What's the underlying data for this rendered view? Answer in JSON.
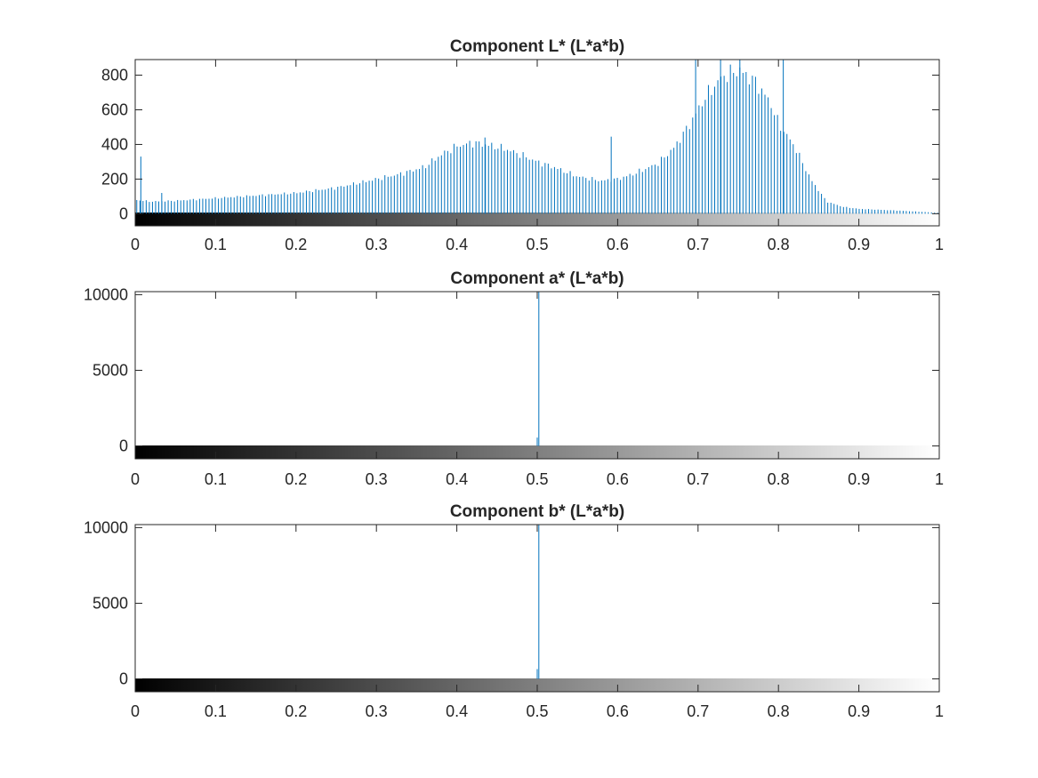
{
  "colors": {
    "stem": "#0072BD",
    "axis": "#262626",
    "background": "#ffffff",
    "gradient_start": "#000000",
    "gradient_end": "#ffffff"
  },
  "chart_data": [
    {
      "type": "bar",
      "title": "Component L* (L*a*b)",
      "xlabel": "",
      "ylabel": "",
      "xlim": [
        0,
        1
      ],
      "ylim": [
        -70,
        890
      ],
      "xticks": [
        0,
        0.1,
        0.2,
        0.3,
        0.4,
        0.5,
        0.6,
        0.7,
        0.8,
        0.9,
        1
      ],
      "xtick_labels": [
        "0",
        "0.1",
        "0.2",
        "0.3",
        "0.4",
        "0.5",
        "0.6",
        "0.7",
        "0.8",
        "0.9",
        "1"
      ],
      "yticks": [
        0,
        200,
        400,
        600,
        800
      ],
      "ytick_labels": [
        "0",
        "200",
        "400",
        "600",
        "800"
      ],
      "colorbar": "grayscale 0 to 1",
      "bins": 256,
      "envelope": [
        [
          0,
          80
        ],
        [
          0.02,
          70
        ],
        [
          0.05,
          75
        ],
        [
          0.1,
          90
        ],
        [
          0.15,
          105
        ],
        [
          0.2,
          120
        ],
        [
          0.25,
          150
        ],
        [
          0.3,
          200
        ],
        [
          0.33,
          230
        ],
        [
          0.36,
          270
        ],
        [
          0.38,
          340
        ],
        [
          0.4,
          390
        ],
        [
          0.42,
          410
        ],
        [
          0.44,
          395
        ],
        [
          0.46,
          375
        ],
        [
          0.48,
          340
        ],
        [
          0.5,
          300
        ],
        [
          0.52,
          270
        ],
        [
          0.55,
          215
        ],
        [
          0.58,
          190
        ],
        [
          0.6,
          200
        ],
        [
          0.62,
          230
        ],
        [
          0.65,
          290
        ],
        [
          0.67,
          380
        ],
        [
          0.69,
          520
        ],
        [
          0.71,
          680
        ],
        [
          0.73,
          790
        ],
        [
          0.75,
          830
        ],
        [
          0.77,
          770
        ],
        [
          0.79,
          640
        ],
        [
          0.8,
          520
        ],
        [
          0.82,
          390
        ],
        [
          0.84,
          200
        ],
        [
          0.86,
          70
        ],
        [
          0.88,
          40
        ],
        [
          0.9,
          28
        ],
        [
          0.95,
          18
        ],
        [
          1,
          5
        ]
      ],
      "spikes": [
        [
          0.007,
          330
        ],
        [
          0.033,
          120
        ],
        [
          0.435,
          440
        ],
        [
          0.592,
          445
        ],
        [
          0.697,
          890
        ],
        [
          0.728,
          890
        ],
        [
          0.752,
          890
        ],
        [
          0.806,
          890
        ]
      ]
    },
    {
      "type": "bar",
      "title": "Component a* (L*a*b)",
      "xlabel": "",
      "ylabel": "",
      "xlim": [
        0,
        1
      ],
      "ylim": [
        -850,
        10200
      ],
      "xticks": [
        0,
        0.1,
        0.2,
        0.3,
        0.4,
        0.5,
        0.6,
        0.7,
        0.8,
        0.9,
        1
      ],
      "xtick_labels": [
        "0",
        "0.1",
        "0.2",
        "0.3",
        "0.4",
        "0.5",
        "0.6",
        "0.7",
        "0.8",
        "0.9",
        "1"
      ],
      "yticks": [
        0,
        5000,
        10000
      ],
      "ytick_labels": [
        "0",
        "5000",
        "10000"
      ],
      "colorbar": "grayscale 0 to 1",
      "bins": 256,
      "envelope": [],
      "spikes": [
        [
          0.5,
          550
        ],
        [
          0.502,
          10200
        ]
      ]
    },
    {
      "type": "bar",
      "title": "Component b* (L*a*b)",
      "xlabel": "",
      "ylabel": "",
      "xlim": [
        0,
        1
      ],
      "ylim": [
        -850,
        10200
      ],
      "xticks": [
        0,
        0.1,
        0.2,
        0.3,
        0.4,
        0.5,
        0.6,
        0.7,
        0.8,
        0.9,
        1
      ],
      "xtick_labels": [
        "0",
        "0.1",
        "0.2",
        "0.3",
        "0.4",
        "0.5",
        "0.6",
        "0.7",
        "0.8",
        "0.9",
        "1"
      ],
      "yticks": [
        0,
        5000,
        10000
      ],
      "ytick_labels": [
        "0",
        "5000",
        "10000"
      ],
      "colorbar": "grayscale 0 to 1",
      "bins": 256,
      "envelope": [],
      "spikes": [
        [
          0.5,
          650
        ],
        [
          0.502,
          10200
        ]
      ]
    }
  ]
}
